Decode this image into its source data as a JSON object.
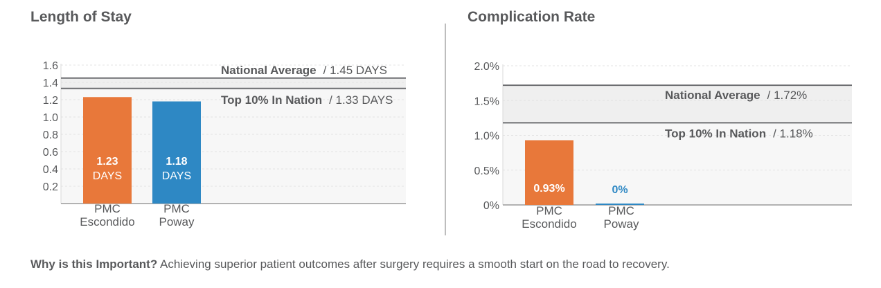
{
  "chart_data": [
    {
      "type": "bar",
      "title": "Length of Stay",
      "categories": [
        [
          "PMC",
          "Escondido"
        ],
        [
          "PMC",
          "Poway"
        ]
      ],
      "values": [
        1.23,
        1.18
      ],
      "value_labels": [
        [
          "1.23",
          "DAYS"
        ],
        [
          "1.18",
          "DAYS"
        ]
      ],
      "colors": [
        "#e8783a",
        "#2e88c4"
      ],
      "yticks": [
        "1.6",
        "1.4",
        "1.2",
        "1.0",
        "0.8",
        "0.6",
        "0.4",
        "0.2"
      ],
      "ytick_values": [
        1.6,
        1.4,
        1.2,
        1.0,
        0.8,
        0.6,
        0.4,
        0.2
      ],
      "ylim": [
        0,
        1.6
      ],
      "reference_band": [
        1.33,
        1.45
      ],
      "reference_lines": [
        {
          "name": "National Average",
          "label": "/ 1.45 DAYS",
          "value": 1.45
        },
        {
          "name": "Top 10% In Nation",
          "label": "/ 1.33 DAYS",
          "value": 1.33
        }
      ]
    },
    {
      "type": "bar",
      "title": "Complication Rate",
      "categories": [
        [
          "PMC",
          "Escondido"
        ],
        [
          "PMC",
          "Poway"
        ]
      ],
      "values": [
        0.93,
        0
      ],
      "value_labels": [
        [
          "0.93%"
        ],
        [
          "0%"
        ]
      ],
      "colors": [
        "#e8783a",
        "#2e88c4"
      ],
      "yticks": [
        "2.0%",
        "1.5%",
        "1.0%",
        "0.5%",
        "0%"
      ],
      "ytick_values": [
        2.0,
        1.5,
        1.0,
        0.5,
        0
      ],
      "ylim": [
        0,
        2.0
      ],
      "reference_band": [
        1.18,
        1.72
      ],
      "reference_lines": [
        {
          "name": "National Average",
          "label": "/  1.72%",
          "value": 1.72
        },
        {
          "name": "Top 10% In Nation",
          "label": "/  1.18%",
          "value": 1.18
        }
      ]
    }
  ],
  "footer": {
    "question": "Why is this Important?",
    "text": "Achieving superior patient outcomes after surgery requires a smooth start on the road to recovery."
  }
}
